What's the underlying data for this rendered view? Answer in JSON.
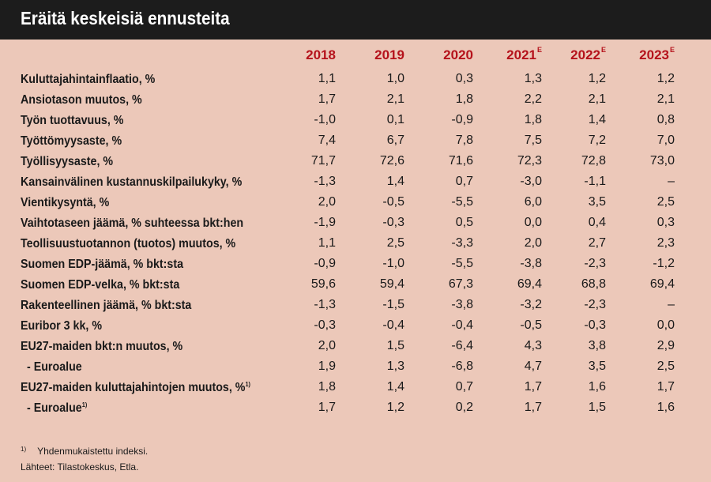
{
  "title": "Eräitä keskeisiä ennusteita",
  "years": [
    {
      "label": "2018",
      "sup": ""
    },
    {
      "label": "2019",
      "sup": ""
    },
    {
      "label": "2020",
      "sup": ""
    },
    {
      "label": "2021",
      "sup": "E"
    },
    {
      "label": "2022",
      "sup": "E"
    },
    {
      "label": "2023",
      "sup": "E"
    }
  ],
  "rows": [
    {
      "label": "Kuluttajahintainflaatio, %",
      "sup": "",
      "indent": false,
      "values": [
        "1,1",
        "1,0",
        "0,3",
        "1,3",
        "1,2",
        "1,2"
      ]
    },
    {
      "label": "Ansiotason muutos, %",
      "sup": "",
      "indent": false,
      "values": [
        "1,7",
        "2,1",
        "1,8",
        "2,2",
        "2,1",
        "2,1"
      ]
    },
    {
      "label": "Työn tuottavuus, %",
      "sup": "",
      "indent": false,
      "values": [
        "-1,0",
        "0,1",
        "-0,9",
        "1,8",
        "1,4",
        "0,8"
      ]
    },
    {
      "label": "Työttömyysaste, %",
      "sup": "",
      "indent": false,
      "values": [
        "7,4",
        "6,7",
        "7,8",
        "7,5",
        "7,2",
        "7,0"
      ]
    },
    {
      "label": "Työllisyysaste, %",
      "sup": "",
      "indent": false,
      "values": [
        "71,7",
        "72,6",
        "71,6",
        "72,3",
        "72,8",
        "73,0"
      ]
    },
    {
      "label": "Kansainvälinen kustannuskilpailukyky, %",
      "sup": "",
      "indent": false,
      "values": [
        "-1,3",
        "1,4",
        "0,7",
        "-3,0",
        "-1,1",
        "–"
      ]
    },
    {
      "label": "Vientikysyntä, %",
      "sup": "",
      "indent": false,
      "values": [
        "2,0",
        "-0,5",
        "-5,5",
        "6,0",
        "3,5",
        "2,5"
      ]
    },
    {
      "label": "Vaihtotaseen jäämä, % suhteessa bkt:hen",
      "sup": "",
      "indent": false,
      "values": [
        "-1,9",
        "-0,3",
        "0,5",
        "0,0",
        "0,4",
        "0,3"
      ]
    },
    {
      "label": "Teollisuustuotannon (tuotos) muutos, %",
      "sup": "",
      "indent": false,
      "values": [
        "1,1",
        "2,5",
        "-3,3",
        "2,0",
        "2,7",
        "2,3"
      ]
    },
    {
      "label": "Suomen EDP-jäämä, % bkt:sta",
      "sup": "",
      "indent": false,
      "values": [
        "-0,9",
        "-1,0",
        "-5,5",
        "-3,8",
        "-2,3",
        "-1,2"
      ]
    },
    {
      "label": "Suomen EDP-velka, % bkt:sta",
      "sup": "",
      "indent": false,
      "values": [
        "59,6",
        "59,4",
        "67,3",
        "69,4",
        "68,8",
        "69,4"
      ]
    },
    {
      "label": "Rakenteellinen jäämä, % bkt:sta",
      "sup": "",
      "indent": false,
      "values": [
        "-1,3",
        "-1,5",
        "-3,8",
        "-3,2",
        "-2,3",
        "–"
      ]
    },
    {
      "label": "Euribor 3 kk, %",
      "sup": "",
      "indent": false,
      "values": [
        "-0,3",
        "-0,4",
        "-0,4",
        "-0,5",
        "-0,3",
        "0,0"
      ]
    },
    {
      "label": "EU27-maiden bkt:n muutos, %",
      "sup": "",
      "indent": false,
      "values": [
        "2,0",
        "1,5",
        "-6,4",
        "4,3",
        "3,8",
        "2,9"
      ]
    },
    {
      "label": "- Euroalue",
      "sup": "",
      "indent": true,
      "values": [
        "1,9",
        "1,3",
        "-6,8",
        "4,7",
        "3,5",
        "2,5"
      ]
    },
    {
      "label": "EU27-maiden kuluttajahintojen muutos, %",
      "sup": "1)",
      "indent": false,
      "values": [
        "1,8",
        "1,4",
        "0,7",
        "1,7",
        "1,6",
        "1,7"
      ]
    },
    {
      "label": "- Euroalue",
      "sup": "1)",
      "indent": true,
      "values": [
        "1,7",
        "1,2",
        "0,2",
        "1,7",
        "1,5",
        "1,6"
      ]
    }
  ],
  "footnote": {
    "mark": "1)",
    "text": "Yhdenmukaistettu indeksi."
  },
  "sources": "Lähteet: Tilastokeskus, Etla.",
  "colors": {
    "background": "#ecc8b9",
    "header": "#1c1c1c",
    "year_text": "#b5121b"
  }
}
